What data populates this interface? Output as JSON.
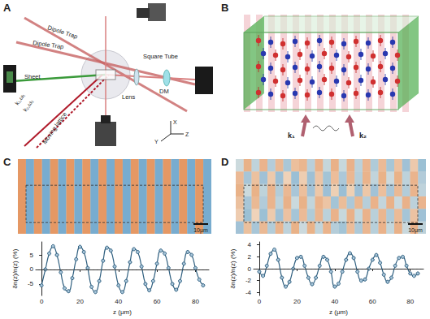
{
  "diagram_a": {
    "panel": "A",
    "labels": {
      "dipole_trap_1": "Dipole Trap",
      "dipole_trap_2": "Dipole Trap",
      "sheet": "Sheet",
      "square_tube": "Square Tube",
      "lens": "Lens",
      "dm": "DM",
      "moving_lattice": "Moving lattice",
      "k1": "k₁,ω₁",
      "k2": "k₂,ω₂",
      "axis_x": "X",
      "axis_y": "Y",
      "axis_z": "Z"
    }
  },
  "diagram_b": {
    "panel": "B",
    "labels": {
      "k1": "k₁",
      "k2": "k₂"
    }
  },
  "images": [
    {
      "panel": "C",
      "annotation": "10μm"
    },
    {
      "panel": "D",
      "annotation": "10μm"
    }
  ],
  "chart_data": [
    {
      "type": "line",
      "xlabel": "z (μm)",
      "ylabel": "δn(z)/n(z) (%)",
      "x": [
        0,
        2,
        4,
        6,
        8,
        10,
        12,
        14,
        16,
        18,
        20,
        22,
        24,
        26,
        28,
        30,
        32,
        34,
        36,
        38,
        40,
        42,
        44,
        46,
        48,
        50,
        52,
        54,
        56,
        58,
        60,
        62,
        64,
        66,
        68,
        70,
        72,
        74,
        76,
        78,
        80,
        82,
        84
      ],
      "values": [
        -5.5,
        0,
        5.5,
        8,
        5,
        -1,
        -6.5,
        -7.5,
        -3,
        3.5,
        7.8,
        6,
        0.5,
        -6,
        -7.8,
        -4,
        3,
        7.5,
        6.5,
        1,
        -5.5,
        -7.8,
        -4,
        2.5,
        7,
        6,
        1,
        -5,
        -7.2,
        -4,
        2,
        6.5,
        5.5,
        0.5,
        -5,
        -7,
        -4,
        2,
        6,
        5,
        0.5,
        -3.5,
        -5.5
      ],
      "xlim": [
        -3,
        87
      ],
      "ylim": [
        -9,
        9.5
      ],
      "xticks": [
        0,
        20,
        40,
        60,
        80
      ],
      "yticks": [
        -5,
        0,
        5
      ],
      "reference_y": 0,
      "color": "#2f5f7f",
      "marker": "circle",
      "grid": false
    },
    {
      "type": "line",
      "xlabel": "z (μm)",
      "ylabel": "δn(z)/n(z) (%)",
      "x": [
        0,
        2,
        4,
        6,
        8,
        10,
        12,
        14,
        16,
        18,
        20,
        22,
        24,
        26,
        28,
        30,
        32,
        34,
        36,
        38,
        40,
        42,
        44,
        46,
        48,
        50,
        52,
        54,
        56,
        58,
        60,
        62,
        64,
        66,
        68,
        70,
        72,
        74,
        76,
        78,
        80,
        82,
        84
      ],
      "values": [
        -0.5,
        -1.2,
        0.5,
        2.5,
        3.2,
        1.5,
        -1.5,
        -3,
        -2.2,
        0,
        1.8,
        2,
        0.5,
        -1.5,
        -2.6,
        -1.5,
        0.5,
        2,
        1.5,
        -0.5,
        -3,
        -2.5,
        -0.5,
        1.5,
        2.6,
        1.8,
        -0.5,
        -2,
        -1.8,
        0,
        1.5,
        2.3,
        1,
        -1,
        -2.2,
        -1.5,
        0.5,
        1.8,
        2,
        0.5,
        -0.8,
        -1.2,
        -0.8
      ],
      "xlim": [
        -3,
        87
      ],
      "ylim": [
        -4.5,
        4.5
      ],
      "xticks": [
        0,
        20,
        40,
        60,
        80
      ],
      "yticks": [
        -4,
        -2,
        0,
        2,
        4
      ],
      "reference_y": 0,
      "color": "#2f5f7f",
      "marker": "circle",
      "grid": false
    }
  ]
}
